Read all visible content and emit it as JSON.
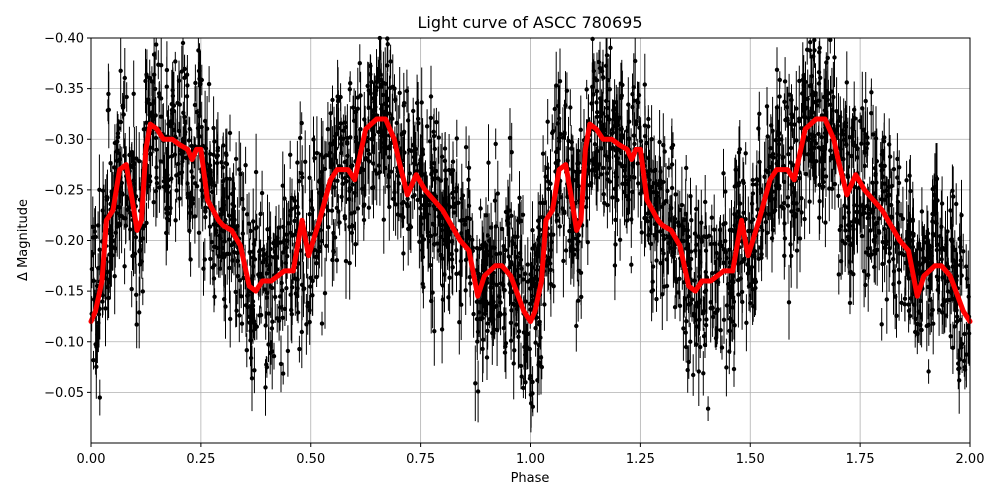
{
  "chart_data": {
    "type": "scatter",
    "title": "Light curve of ASCC 780695",
    "xlabel": "Phase",
    "ylabel": "Δ Magnitude",
    "xlim": [
      0.0,
      2.0
    ],
    "ylim": [
      0.0,
      -0.4
    ],
    "y_inverted": true,
    "grid": true,
    "legend": null,
    "xticks": [
      "0.00",
      "0.25",
      "0.50",
      "0.75",
      "1.00",
      "1.25",
      "1.50",
      "1.75",
      "2.00"
    ],
    "yticks": [
      "-0.40",
      "-0.35",
      "-0.30",
      "-0.25",
      "-0.20",
      "-0.15",
      "-0.10",
      "-0.05"
    ],
    "series": [
      {
        "name": "observations",
        "style": "black points with vertical error bars",
        "color": "#000000",
        "note": "dense scatter of thousands of points spanning roughly -0.40 to 0.00, folded and repeated over two phase cycles"
      },
      {
        "name": "binned model curve",
        "style": "thick red line",
        "color": "#ff0000",
        "x": [
          0.0,
          0.01,
          0.025,
          0.035,
          0.05,
          0.065,
          0.08,
          0.09,
          0.105,
          0.115,
          0.125,
          0.135,
          0.15,
          0.165,
          0.185,
          0.2,
          0.22,
          0.23,
          0.24,
          0.25,
          0.265,
          0.29,
          0.3,
          0.32,
          0.34,
          0.36,
          0.375,
          0.39,
          0.41,
          0.425,
          0.44,
          0.46,
          0.48,
          0.495,
          0.52,
          0.545,
          0.56,
          0.585,
          0.6,
          0.625,
          0.65,
          0.67,
          0.68,
          0.69,
          0.7,
          0.72,
          0.74,
          0.76,
          0.8,
          0.84,
          0.86,
          0.88,
          0.895,
          0.92,
          0.935,
          0.955,
          0.985,
          1.0
        ],
        "y": [
          -0.12,
          -0.13,
          -0.16,
          -0.22,
          -0.23,
          -0.27,
          -0.275,
          -0.25,
          -0.21,
          -0.22,
          -0.29,
          -0.315,
          -0.31,
          -0.3,
          -0.3,
          -0.295,
          -0.29,
          -0.28,
          -0.29,
          -0.29,
          -0.24,
          -0.22,
          -0.215,
          -0.21,
          -0.195,
          -0.155,
          -0.15,
          -0.16,
          -0.16,
          -0.165,
          -0.17,
          -0.17,
          -0.22,
          -0.185,
          -0.22,
          -0.26,
          -0.27,
          -0.27,
          -0.26,
          -0.31,
          -0.32,
          -0.32,
          -0.31,
          -0.3,
          -0.28,
          -0.245,
          -0.265,
          -0.25,
          -0.23,
          -0.2,
          -0.19,
          -0.145,
          -0.165,
          -0.175,
          -0.175,
          -0.165,
          -0.13,
          -0.12
        ],
        "repeat_period": 1.0,
        "cycles": 2
      }
    ]
  }
}
